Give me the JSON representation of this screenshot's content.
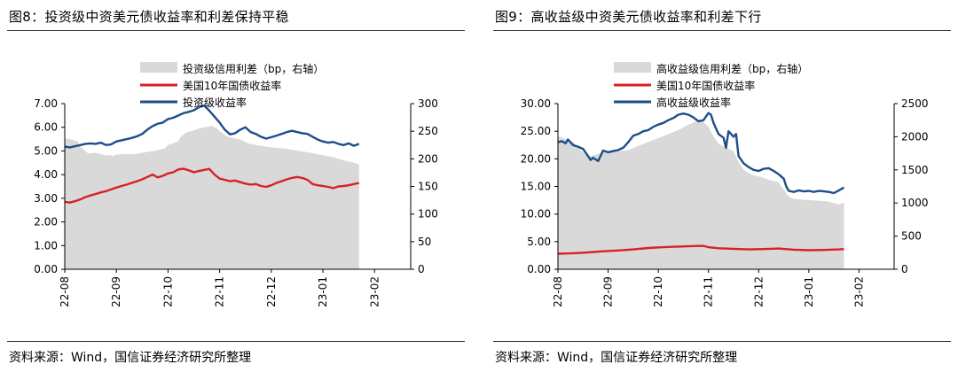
{
  "source_text": "资料来源：Wind，国信证券经济研究所整理",
  "colors": {
    "spread": "#d9d9d9",
    "treasury": "#d92027",
    "yield": "#1d4e89"
  },
  "chart_data": [
    {
      "type": "line",
      "title": "图8：投资级中资美元债收益率和利差保持平稳",
      "legend": [
        "投资级信用利差（bp，右轴）",
        "美国10年国债收益率",
        "投资级收益率"
      ],
      "legend_position": "top-center",
      "x_ticks": [
        "22-08",
        "22-09",
        "22-10",
        "22-11",
        "22-12",
        "23-01",
        "23-02"
      ],
      "y_left": {
        "ticks": [
          "7.00",
          "6.00",
          "5.00",
          "4.00",
          "3.00",
          "2.00",
          "1.00",
          "0.00"
        ],
        "lim": [
          0,
          7
        ]
      },
      "y_right": {
        "ticks": [
          "300",
          "250",
          "200",
          "150",
          "100",
          "50",
          "0"
        ],
        "lim": [
          0,
          300
        ]
      },
      "grid": false,
      "series": [
        {
          "name": "投资级信用利差（bp，右轴）",
          "kind": "area",
          "axis": "right",
          "x": [
            0,
            0.05,
            0.25,
            0.27,
            0.3,
            0.45,
            0.6,
            0.72,
            0.8,
            0.85,
            0.9,
            0.95,
            1.0,
            1.05,
            1.1,
            1.2,
            1.4,
            1.55,
            1.7,
            1.8,
            1.9,
            1.95,
            2.0,
            2.1,
            2.2,
            2.25,
            2.35,
            2.45,
            2.6,
            2.75,
            2.85,
            2.95,
            3.0,
            3.08,
            3.15,
            3.25,
            3.35,
            3.45,
            3.55,
            3.7,
            3.9,
            4.1,
            4.3,
            4.5,
            4.7,
            4.9,
            5.1,
            5.3,
            5.5,
            5.6,
            5.7
          ],
          "values": [
            235,
            237,
            232,
            228,
            222,
            210,
            211,
            208,
            206,
            207,
            206,
            205,
            208,
            207,
            209,
            208,
            209,
            212,
            214,
            216,
            218,
            220,
            225,
            228,
            232,
            240,
            248,
            250,
            255,
            258,
            260,
            255,
            250,
            245,
            240,
            238,
            236,
            233,
            228,
            225,
            222,
            220,
            218,
            215,
            212,
            208,
            205,
            200,
            195,
            193,
            190
          ]
        },
        {
          "name": "美国10年国债收益率",
          "kind": "line",
          "axis": "left",
          "x": [
            0,
            0.1,
            0.2,
            0.3,
            0.4,
            0.5,
            0.6,
            0.7,
            0.8,
            0.9,
            1.0,
            1.1,
            1.2,
            1.3,
            1.4,
            1.5,
            1.6,
            1.7,
            1.8,
            1.9,
            2.0,
            2.1,
            2.2,
            2.3,
            2.4,
            2.5,
            2.6,
            2.7,
            2.8,
            2.9,
            3.0,
            3.1,
            3.2,
            3.3,
            3.4,
            3.5,
            3.6,
            3.7,
            3.8,
            3.9,
            4.0,
            4.1,
            4.2,
            4.3,
            4.4,
            4.5,
            4.6,
            4.7,
            4.8,
            4.9,
            5.0,
            5.1,
            5.2,
            5.3,
            5.4,
            5.5,
            5.6,
            5.7
          ],
          "values": [
            2.85,
            2.82,
            2.88,
            2.95,
            3.05,
            3.12,
            3.18,
            3.25,
            3.3,
            3.38,
            3.45,
            3.52,
            3.58,
            3.65,
            3.72,
            3.8,
            3.9,
            4.0,
            3.88,
            3.95,
            4.05,
            4.1,
            4.22,
            4.25,
            4.18,
            4.1,
            4.15,
            4.2,
            4.24,
            4.0,
            3.83,
            3.78,
            3.72,
            3.75,
            3.68,
            3.62,
            3.58,
            3.6,
            3.52,
            3.48,
            3.55,
            3.65,
            3.72,
            3.8,
            3.86,
            3.9,
            3.86,
            3.78,
            3.6,
            3.55,
            3.52,
            3.48,
            3.43,
            3.5,
            3.52,
            3.55,
            3.6,
            3.65
          ]
        },
        {
          "name": "投资级收益率",
          "kind": "line",
          "axis": "left",
          "x": [
            0,
            0.1,
            0.2,
            0.3,
            0.4,
            0.5,
            0.6,
            0.7,
            0.8,
            0.9,
            1.0,
            1.1,
            1.2,
            1.3,
            1.4,
            1.5,
            1.6,
            1.7,
            1.8,
            1.9,
            2.0,
            2.1,
            2.2,
            2.3,
            2.4,
            2.5,
            2.6,
            2.7,
            2.8,
            2.9,
            3.0,
            3.1,
            3.2,
            3.3,
            3.4,
            3.5,
            3.6,
            3.7,
            3.8,
            3.9,
            4.0,
            4.1,
            4.2,
            4.3,
            4.4,
            4.5,
            4.6,
            4.7,
            4.8,
            4.9,
            5.0,
            5.1,
            5.2,
            5.3,
            5.4,
            5.5,
            5.6,
            5.7
          ],
          "values": [
            5.18,
            5.15,
            5.2,
            5.25,
            5.3,
            5.32,
            5.3,
            5.35,
            5.25,
            5.28,
            5.4,
            5.45,
            5.5,
            5.55,
            5.62,
            5.72,
            5.9,
            6.05,
            6.15,
            6.2,
            6.35,
            6.4,
            6.5,
            6.6,
            6.65,
            6.72,
            6.85,
            6.92,
            6.7,
            6.45,
            6.2,
            5.9,
            5.7,
            5.75,
            5.9,
            6.0,
            5.8,
            5.72,
            5.6,
            5.52,
            5.58,
            5.65,
            5.72,
            5.8,
            5.85,
            5.8,
            5.75,
            5.72,
            5.6,
            5.48,
            5.4,
            5.35,
            5.38,
            5.3,
            5.25,
            5.32,
            5.22,
            5.3
          ]
        }
      ]
    },
    {
      "type": "line",
      "title": "图9：高收益级中资美元债收益率和利差下行",
      "legend": [
        "高收益级信用利差（bp，右轴）",
        "美国10年国债收益率",
        "高收益级收益率"
      ],
      "legend_position": "top-center",
      "x_ticks": [
        "22-08",
        "22-09",
        "22-10",
        "22-11",
        "22-12",
        "23-01",
        "23-02"
      ],
      "y_left": {
        "ticks": [
          "30.00",
          "25.00",
          "20.00",
          "15.00",
          "10.00",
          "5.00",
          "0.00"
        ],
        "lim": [
          0,
          30
        ]
      },
      "y_right": {
        "ticks": [
          "2500",
          "2000",
          "1500",
          "1000",
          "500",
          "0"
        ],
        "lim": [
          0,
          2500
        ]
      },
      "grid": false,
      "series": [
        {
          "name": "高收益级信用利差（bp，右轴）",
          "kind": "area",
          "axis": "right",
          "x": [
            0,
            0.1,
            0.2,
            0.3,
            0.45,
            0.6,
            0.7,
            0.8,
            0.9,
            1.0,
            1.2,
            1.4,
            1.6,
            1.8,
            2.0,
            2.2,
            2.4,
            2.6,
            2.8,
            2.9,
            3.0,
            3.1,
            3.2,
            3.3,
            3.4,
            3.5,
            3.6,
            3.7,
            3.8,
            3.9,
            4.0,
            4.1,
            4.2,
            4.3,
            4.4,
            4.5,
            4.6,
            4.7,
            4.8,
            4.9,
            5.0,
            5.1,
            5.2,
            5.3,
            5.4,
            5.5,
            5.6,
            5.7
          ],
          "values": [
            2010,
            1980,
            1950,
            1920,
            1800,
            1700,
            1720,
            1740,
            1760,
            1770,
            1780,
            1800,
            1860,
            1920,
            1980,
            2040,
            2100,
            2180,
            2250,
            2220,
            2150,
            2000,
            1900,
            1850,
            1820,
            1780,
            1620,
            1500,
            1450,
            1420,
            1400,
            1380,
            1350,
            1330,
            1310,
            1200,
            1100,
            1060,
            1055,
            1050,
            1045,
            1040,
            1035,
            1030,
            1020,
            1000,
            980,
            1010
          ]
        },
        {
          "name": "美国10年国债收益率",
          "kind": "line",
          "axis": "left",
          "x": [
            0,
            0.3,
            0.6,
            0.9,
            1.2,
            1.5,
            1.8,
            2.1,
            2.4,
            2.7,
            2.9,
            3.0,
            3.2,
            3.5,
            3.8,
            4.1,
            4.4,
            4.7,
            5.0,
            5.3,
            5.6,
            5.7
          ],
          "values": [
            2.8,
            2.9,
            3.05,
            3.25,
            3.4,
            3.6,
            3.85,
            4.0,
            4.1,
            4.2,
            4.24,
            4.0,
            3.8,
            3.7,
            3.6,
            3.65,
            3.75,
            3.55,
            3.45,
            3.5,
            3.6,
            3.65
          ]
        },
        {
          "name": "高收益级收益率",
          "kind": "line",
          "axis": "left",
          "x": [
            0,
            0.08,
            0.15,
            0.2,
            0.3,
            0.4,
            0.5,
            0.6,
            0.65,
            0.7,
            0.8,
            0.9,
            1.0,
            1.1,
            1.2,
            1.3,
            1.4,
            1.5,
            1.6,
            1.7,
            1.8,
            1.9,
            2.0,
            2.1,
            2.2,
            2.3,
            2.4,
            2.5,
            2.6,
            2.7,
            2.8,
            2.9,
            3.0,
            3.05,
            3.1,
            3.2,
            3.3,
            3.35,
            3.4,
            3.5,
            3.55,
            3.6,
            3.7,
            3.8,
            3.9,
            4.0,
            4.1,
            4.2,
            4.3,
            4.4,
            4.5,
            4.55,
            4.6,
            4.7,
            4.8,
            4.9,
            5.0,
            5.1,
            5.2,
            5.3,
            5.4,
            5.5,
            5.6,
            5.7
          ],
          "values": [
            23.0,
            23.2,
            22.8,
            23.5,
            22.5,
            22.2,
            21.8,
            20.5,
            19.8,
            20.2,
            19.6,
            21.5,
            21.2,
            21.4,
            21.6,
            22.0,
            23.0,
            24.2,
            24.5,
            25.0,
            25.2,
            25.8,
            26.2,
            26.5,
            27.0,
            27.4,
            28.0,
            28.2,
            28.0,
            27.5,
            26.8,
            27.0,
            28.3,
            28.0,
            26.5,
            24.5,
            23.8,
            22.0,
            25.0,
            24.0,
            24.5,
            20.5,
            19.2,
            18.5,
            18.0,
            17.8,
            18.2,
            18.3,
            17.8,
            17.2,
            16.4,
            15.0,
            14.2,
            14.0,
            14.3,
            14.1,
            14.2,
            14.0,
            14.2,
            14.1,
            14.0,
            13.8,
            14.3,
            14.8
          ]
        }
      ]
    }
  ]
}
